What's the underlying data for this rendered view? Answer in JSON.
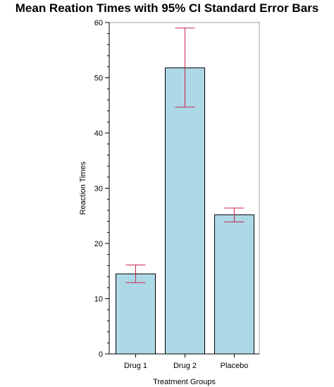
{
  "chart_data": {
    "type": "bar",
    "title": "Mean Reation Times with 95% CI Standard Error Bars",
    "xlabel": "Treatment Groups",
    "ylabel": "Reaction Times",
    "categories": [
      "Drug 1",
      "Drug 2",
      "Placebo"
    ],
    "values": [
      14.5,
      51.8,
      25.2
    ],
    "error_low": [
      12.9,
      44.7,
      23.9
    ],
    "error_high": [
      16.1,
      59.0,
      26.4
    ],
    "ylim": [
      0,
      60
    ],
    "yticks": [
      0,
      10,
      20,
      30,
      40,
      50,
      60
    ],
    "yticks_labels": [
      "0",
      "10",
      "20",
      "30",
      "40",
      "50",
      "60"
    ],
    "grid": false,
    "legend": "none",
    "colors": {
      "bar_fill": "#add8e6",
      "bar_stroke": "#000000",
      "error_bar": "#c8244a",
      "frame": "#a0a0a0"
    }
  }
}
